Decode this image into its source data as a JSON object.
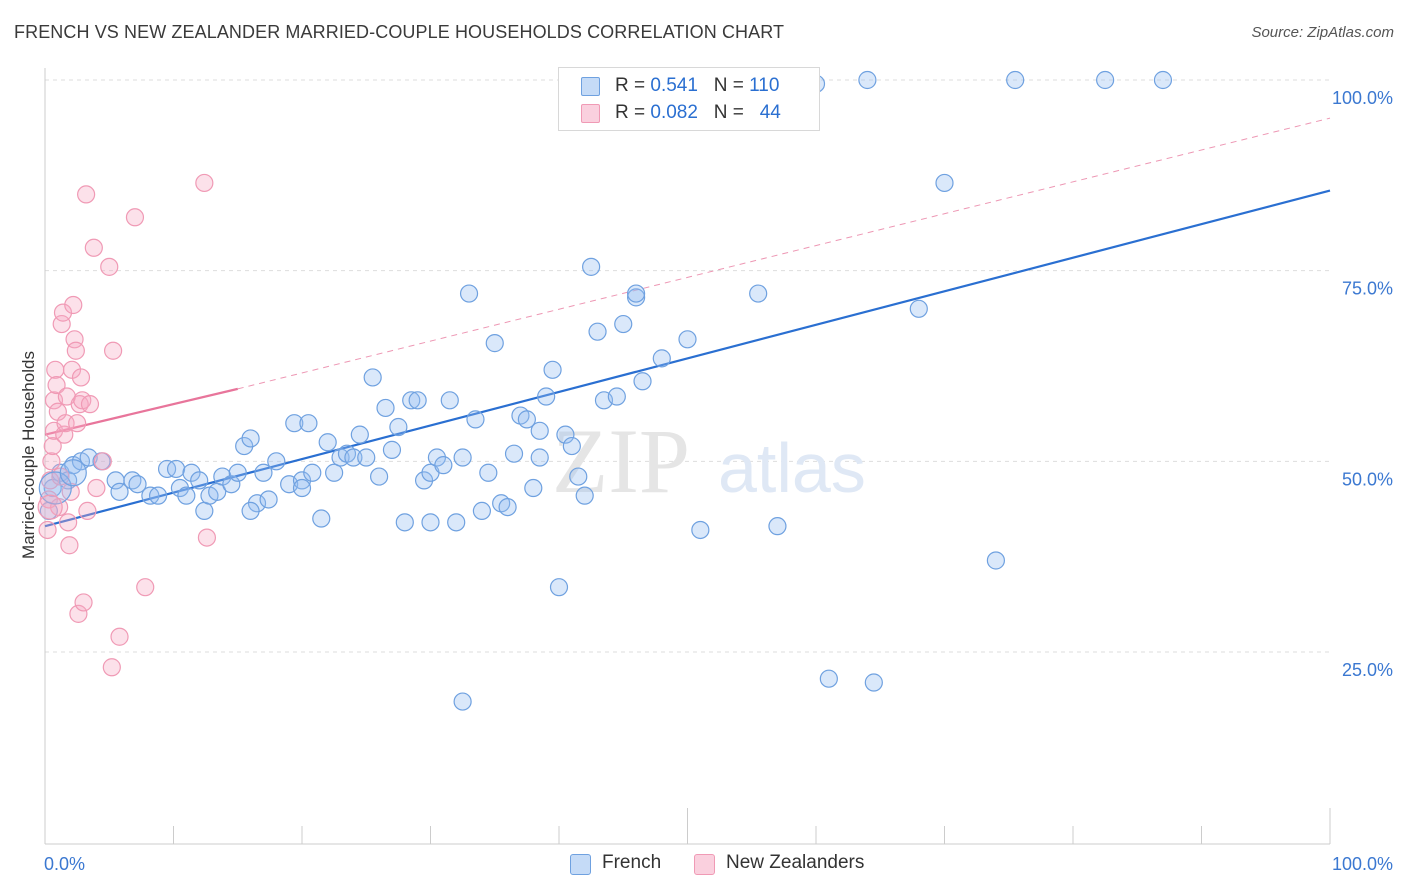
{
  "title": "FRENCH VS NEW ZEALANDER MARRIED-COUPLE HOUSEHOLDS CORRELATION CHART",
  "source": "Source: ZipAtlas.com",
  "watermark": "ZIPatlas",
  "colors": {
    "french": "#6fa1e0",
    "french_fill": "rgba(150,190,240,0.35)",
    "french_line": "#2a6fd1",
    "nz": "#f09ab5",
    "nz_fill": "rgba(245,170,195,0.35)",
    "nz_line": "#e8759b",
    "tick_text": "#3b78d1",
    "grid": "#dddddd"
  },
  "legend": {
    "rows": [
      {
        "r_label": "R = ",
        "r_value": "0.541",
        "n_label": "N = ",
        "n_value": "110"
      },
      {
        "r_label": "R = ",
        "r_value": "0.082",
        "n_label": "N = ",
        "n_value": "44"
      }
    ]
  },
  "bottom_legend": {
    "french": "French",
    "nz": "New Zealanders"
  },
  "chart_data": {
    "type": "scatter",
    "title": "FRENCH VS NEW ZEALANDER MARRIED-COUPLE HOUSEHOLDS CORRELATION CHART",
    "xlabel": "",
    "ylabel": "Married-couple Households",
    "xlim": [
      0,
      100
    ],
    "ylim": [
      0,
      104
    ],
    "x_tick_labels": [
      "0.0%",
      "100.0%"
    ],
    "y_ticks": [
      25,
      50,
      75,
      100
    ],
    "y_tick_labels": [
      "25.0%",
      "50.0%",
      "75.0%",
      "100.0%"
    ],
    "grid": true,
    "legend_position": "top-center",
    "series": [
      {
        "name": "French",
        "points": [
          [
            0.3,
            43.5
          ],
          [
            0.6,
            46.5
          ],
          [
            1.2,
            48.5
          ],
          [
            1.8,
            47.5
          ],
          [
            2.2,
            49.5
          ],
          [
            2.8,
            50
          ],
          [
            3.4,
            50.5
          ],
          [
            4.4,
            50
          ],
          [
            5.5,
            47.5
          ],
          [
            5.8,
            46
          ],
          [
            6.8,
            47.5
          ],
          [
            7.2,
            47
          ],
          [
            8.2,
            45.5
          ],
          [
            8.8,
            45.5
          ],
          [
            9.5,
            49
          ],
          [
            10.2,
            49
          ],
          [
            10.5,
            46.5
          ],
          [
            11,
            45.5
          ],
          [
            11.4,
            48.5
          ],
          [
            12,
            47.5
          ],
          [
            12.4,
            43.5
          ],
          [
            12.8,
            45.5
          ],
          [
            13.4,
            46
          ],
          [
            13.8,
            48
          ],
          [
            14.5,
            47
          ],
          [
            15,
            48.5
          ],
          [
            15.5,
            52
          ],
          [
            16,
            53
          ],
          [
            16.5,
            44.5
          ],
          [
            17,
            48.5
          ],
          [
            17.4,
            45
          ],
          [
            18,
            50
          ],
          [
            19,
            47
          ],
          [
            19.4,
            55
          ],
          [
            20,
            47.5
          ],
          [
            20.5,
            55
          ],
          [
            20.8,
            48.5
          ],
          [
            21.5,
            42.5
          ],
          [
            22,
            52.5
          ],
          [
            22.5,
            48.5
          ],
          [
            23,
            50.5
          ],
          [
            23.5,
            51
          ],
          [
            24,
            50.5
          ],
          [
            24.5,
            53.5
          ],
          [
            25,
            50.5
          ],
          [
            25.5,
            61
          ],
          [
            26,
            48
          ],
          [
            26.5,
            57
          ],
          [
            27,
            51.5
          ],
          [
            27.5,
            54.5
          ],
          [
            28,
            42
          ],
          [
            28.5,
            58
          ],
          [
            29,
            58
          ],
          [
            29.5,
            47.5
          ],
          [
            30,
            48.5
          ],
          [
            30.5,
            50.5
          ],
          [
            31,
            49.5
          ],
          [
            31.5,
            58
          ],
          [
            32,
            42
          ],
          [
            32.5,
            50.5
          ],
          [
            33,
            72
          ],
          [
            33.5,
            55.5
          ],
          [
            34,
            43.5
          ],
          [
            34.5,
            48.5
          ],
          [
            35,
            65.5
          ],
          [
            35.5,
            44.5
          ],
          [
            36,
            44
          ],
          [
            36.5,
            51
          ],
          [
            37,
            56
          ],
          [
            37.5,
            55.5
          ],
          [
            38,
            46.5
          ],
          [
            38.5,
            50.5
          ],
          [
            39,
            58.5
          ],
          [
            39.5,
            62
          ],
          [
            40,
            33.5
          ],
          [
            40.5,
            53.5
          ],
          [
            41,
            52
          ],
          [
            41.5,
            48
          ],
          [
            42,
            45.5
          ],
          [
            42.5,
            75.5
          ],
          [
            43,
            67
          ],
          [
            43.5,
            58
          ],
          [
            44.5,
            58.5
          ],
          [
            45,
            68
          ],
          [
            46,
            71.5
          ],
          [
            46.5,
            60.5
          ],
          [
            48,
            63.5
          ],
          [
            50,
            66
          ],
          [
            51,
            41
          ],
          [
            52,
            99.5
          ],
          [
            53,
            96
          ],
          [
            55.5,
            72
          ],
          [
            57,
            41.5
          ],
          [
            60,
            99.5
          ],
          [
            61,
            21.5
          ],
          [
            64,
            100
          ],
          [
            64.5,
            21
          ],
          [
            68,
            70
          ],
          [
            70,
            86.5
          ],
          [
            74,
            37
          ],
          [
            75.5,
            100
          ],
          [
            82.5,
            100
          ],
          [
            87,
            100
          ],
          [
            49,
            94.5
          ],
          [
            32.5,
            18.5
          ],
          [
            46,
            72
          ],
          [
            38.5,
            54
          ],
          [
            30,
            42
          ],
          [
            20,
            46.5
          ],
          [
            16,
            43.5
          ]
        ]
      },
      {
        "name": "New Zealanders",
        "points": [
          [
            0.2,
            41
          ],
          [
            0.3,
            45
          ],
          [
            0.4,
            47.5
          ],
          [
            0.5,
            50
          ],
          [
            0.6,
            52
          ],
          [
            0.7,
            54
          ],
          [
            0.7,
            58
          ],
          [
            0.8,
            62
          ],
          [
            0.9,
            60
          ],
          [
            1,
            56.5
          ],
          [
            1.1,
            44
          ],
          [
            1.2,
            48
          ],
          [
            1.3,
            68
          ],
          [
            1.4,
            69.5
          ],
          [
            1.5,
            53.5
          ],
          [
            1.6,
            55
          ],
          [
            1.7,
            58.5
          ],
          [
            1.8,
            42
          ],
          [
            1.9,
            39
          ],
          [
            2,
            46
          ],
          [
            2.1,
            62
          ],
          [
            2.2,
            70.5
          ],
          [
            2.3,
            66
          ],
          [
            2.4,
            64.5
          ],
          [
            2.5,
            55
          ],
          [
            2.6,
            30
          ],
          [
            2.7,
            57.5
          ],
          [
            2.8,
            61
          ],
          [
            2.9,
            58
          ],
          [
            3,
            31.5
          ],
          [
            3.2,
            85
          ],
          [
            3.3,
            43.5
          ],
          [
            3.5,
            57.5
          ],
          [
            3.8,
            78
          ],
          [
            4,
            46.5
          ],
          [
            4.5,
            50
          ],
          [
            5,
            75.5
          ],
          [
            5.3,
            64.5
          ],
          [
            5.8,
            27
          ],
          [
            5.2,
            23
          ],
          [
            7,
            82
          ],
          [
            7.8,
            33.5
          ],
          [
            12.4,
            86.5
          ],
          [
            12.6,
            40
          ]
        ]
      }
    ],
    "trendlines": [
      {
        "series": "French",
        "x": [
          0,
          100
        ],
        "y": [
          41.5,
          85.5
        ],
        "style": "solid"
      },
      {
        "series": "New Zealanders",
        "x": [
          0,
          15
        ],
        "y": [
          53.5,
          59.5
        ],
        "style": "solid"
      },
      {
        "series": "New Zealanders",
        "x": [
          15,
          100
        ],
        "y": [
          59.5,
          95
        ],
        "style": "dashed"
      }
    ]
  }
}
